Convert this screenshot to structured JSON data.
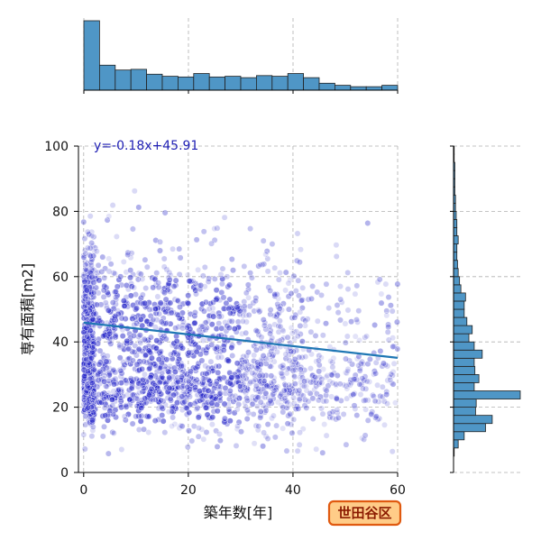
{
  "chart_data": {
    "type": "scatter",
    "xlabel": "築年数[年]",
    "ylabel": "専有面積[m2]",
    "xlim": [
      -1,
      60
    ],
    "ylim": [
      0,
      100
    ],
    "xticks": [
      0,
      20,
      40,
      60
    ],
    "yticks": [
      0,
      20,
      40,
      60,
      80,
      100
    ],
    "grid": true,
    "regression": {
      "slope": -0.18,
      "intercept": 45.91,
      "label": "y=-0.18x+45.91",
      "color": "#1f77b4"
    },
    "badge": "世田谷区",
    "colors": {
      "points": "#2323c8",
      "hist": "#4f96c6",
      "grid": "#b0b0b0"
    },
    "top_histogram": {
      "bin_edges": [
        0,
        3,
        6,
        9,
        12,
        15,
        18,
        21,
        24,
        27,
        30,
        33,
        36,
        39,
        42,
        45,
        48,
        51,
        54,
        57,
        60
      ],
      "relative_heights": [
        1.0,
        0.36,
        0.29,
        0.3,
        0.23,
        0.2,
        0.19,
        0.24,
        0.19,
        0.2,
        0.18,
        0.21,
        0.2,
        0.24,
        0.18,
        0.1,
        0.07,
        0.05,
        0.05,
        0.07
      ]
    },
    "right_histogram": {
      "bin_edges": [
        0,
        2.5,
        5,
        7.5,
        10,
        12.5,
        15,
        17.5,
        20,
        22.5,
        25,
        27.5,
        30,
        32.5,
        35,
        37.5,
        40,
        42.5,
        45,
        47.5,
        50,
        52.5,
        55,
        57.5,
        60,
        62.5,
        65,
        67.5,
        70,
        72.5,
        75,
        77.5,
        80,
        82.5,
        85,
        87.5,
        90,
        92.5,
        95,
        97.5,
        100
      ],
      "relative_heights": [
        0.0,
        0.0,
        0.01,
        0.07,
        0.16,
        0.48,
        0.58,
        0.33,
        0.34,
        1.0,
        0.31,
        0.38,
        0.32,
        0.31,
        0.43,
        0.31,
        0.23,
        0.28,
        0.2,
        0.16,
        0.16,
        0.18,
        0.11,
        0.09,
        0.07,
        0.06,
        0.05,
        0.05,
        0.07,
        0.05,
        0.05,
        0.04,
        0.03,
        0.03,
        0.02,
        0.02,
        0.02,
        0.02,
        0.01,
        0.01
      ]
    }
  }
}
